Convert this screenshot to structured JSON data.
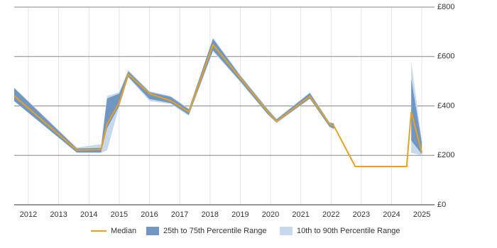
{
  "chart_data": {
    "type": "line",
    "x": [
      2011.53,
      2013.6,
      2014.4,
      2014.6,
      2015.0,
      2015.3,
      2016.0,
      2016.7,
      2017.3,
      2018.1,
      2019.0,
      2019.9,
      2020.2,
      2021.3,
      2021.95,
      2022.1,
      2022.8,
      2024.5,
      2024.65,
      2025.0
    ],
    "series": [
      {
        "name": "Median",
        "color": "#e8a020",
        "values": [
          441,
          221,
          224,
          327,
          413,
          528,
          450,
          421,
          376,
          648,
          513,
          378,
          338,
          439,
          327,
          318,
          155,
          155,
          376,
          212
        ]
      },
      {
        "name": "25th to 75th Percentile Range",
        "color": "#7096c2",
        "lower": [
          420,
          212,
          212,
          310,
          400,
          518,
          428,
          412,
          364,
          625,
          500,
          368,
          333,
          430,
          316,
          308,
          null,
          null,
          260,
          205
        ],
        "upper": [
          472,
          228,
          230,
          430,
          450,
          540,
          456,
          437,
          386,
          672,
          522,
          386,
          345,
          452,
          332,
          328,
          null,
          null,
          510,
          250
        ]
      },
      {
        "name": "10th to 90th Percentile Range",
        "color": "#c6d9ee",
        "lower": [
          418,
          210,
          210,
          220,
          398,
          515,
          420,
          408,
          360,
          620,
          497,
          365,
          330,
          428,
          314,
          305,
          null,
          null,
          210,
          200
        ],
        "upper": [
          475,
          232,
          245,
          440,
          455,
          545,
          460,
          440,
          390,
          676,
          526,
          390,
          348,
          455,
          335,
          330,
          null,
          null,
          580,
          260
        ]
      }
    ],
    "xlim": [
      2011.53,
      2025.42
    ],
    "xticks": [
      2012,
      2013,
      2014,
      2015,
      2016,
      2017,
      2018,
      2019,
      2020,
      2021,
      2022,
      2023,
      2024,
      2025
    ],
    "ylim": [
      0,
      800
    ],
    "yticks": [
      {
        "value": 0,
        "label": "£0"
      },
      {
        "value": 200,
        "label": "£200"
      },
      {
        "value": 400,
        "label": "£400"
      },
      {
        "value": 600,
        "label": "£600"
      },
      {
        "value": 800,
        "label": "£800"
      }
    ],
    "grid": true,
    "legend": "bottom"
  }
}
